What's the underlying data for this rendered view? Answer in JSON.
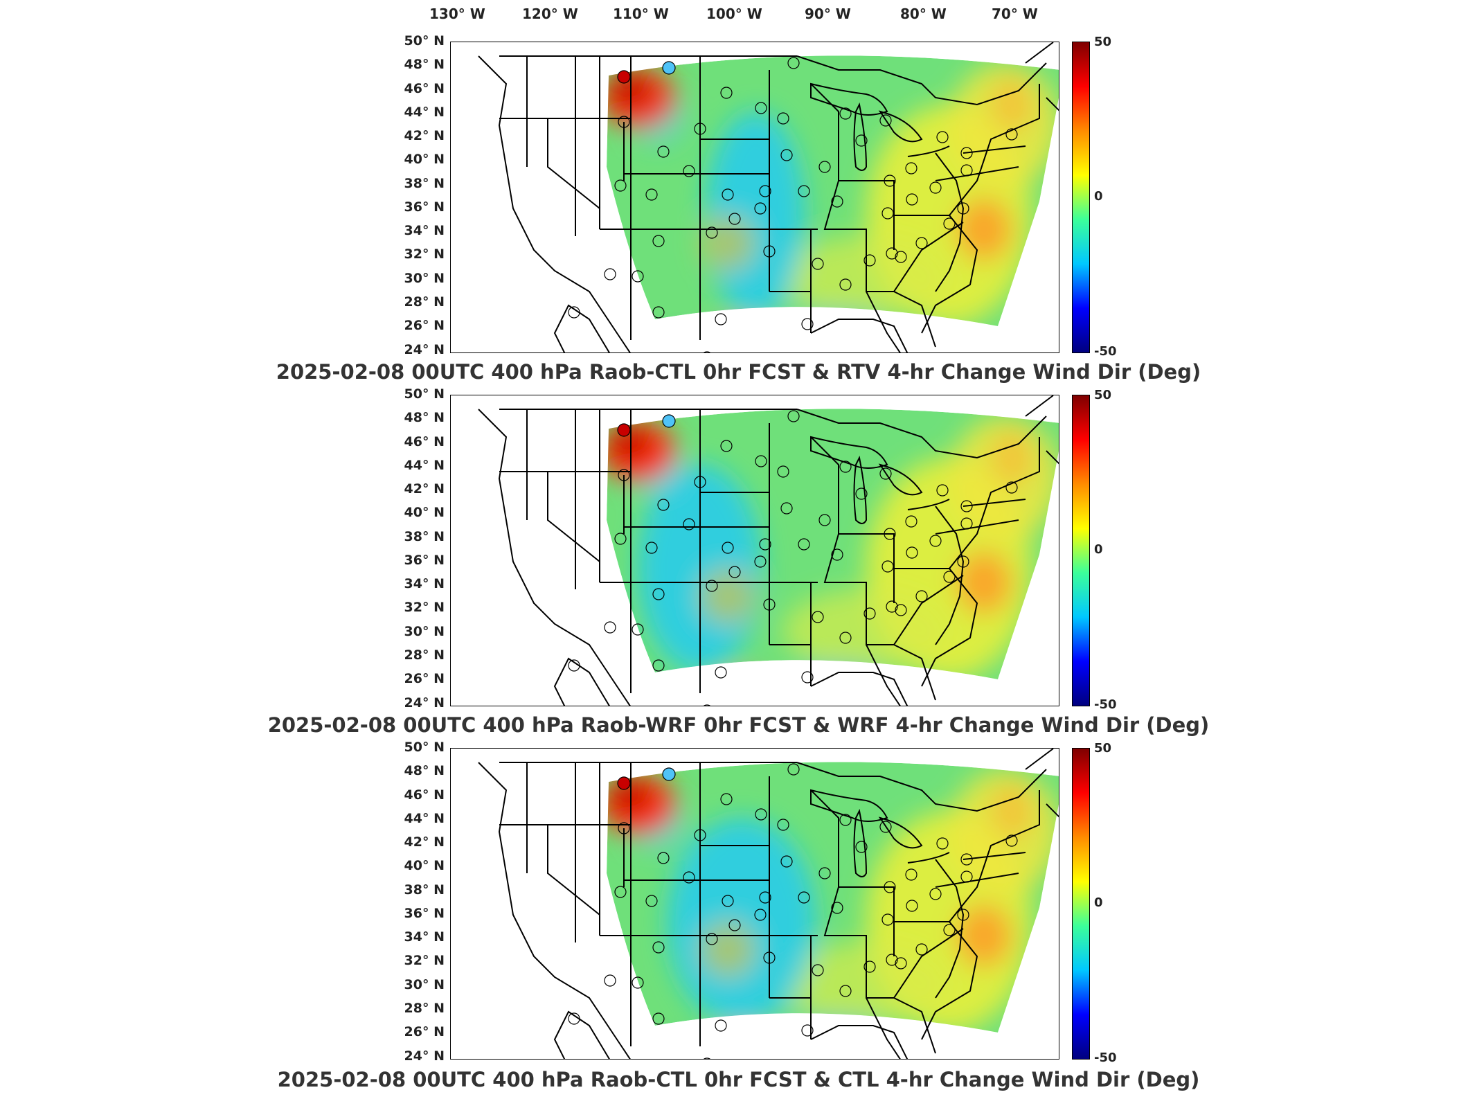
{
  "longitude_labels": [
    "130° W",
    "120° W",
    "110° W",
    "100° W",
    "90° W",
    "80° W",
    "70° W"
  ],
  "latitude_labels": [
    "50° N",
    "48° N",
    "46° N",
    "44° N",
    "42° N",
    "40° N",
    "38° N",
    "36° N",
    "34° N",
    "32° N",
    "30° N",
    "28° N",
    "26° N",
    "24° N"
  ],
  "colorbar": {
    "max_label": "50",
    "mid_label": "0",
    "min_label": "-50",
    "colors": [
      "#7f0000",
      "#ff0000",
      "#ff8c00",
      "#ffff00",
      "#3cff9a",
      "#00c8ff",
      "#0000ff",
      "#00007f"
    ]
  },
  "panels": [
    {
      "title": "2025-02-08 00UTC 400 hPa Raob-CTL 0hr FCST & RTV 4-hr Change Wind Dir (Deg)"
    },
    {
      "title": "2025-02-08 00UTC 400 hPa Raob-WRF 0hr FCST & WRF 4-hr Change Wind Dir (Deg)"
    },
    {
      "title": "2025-02-08 00UTC 400 hPa Raob-CTL 0hr FCST & CTL 4-hr Change Wind Dir (Deg)"
    }
  ],
  "legend_colors": {
    "high_anomaly": "#c80000",
    "low_anomaly": "#4fc3f7",
    "field_base": "#6fe07a"
  }
}
